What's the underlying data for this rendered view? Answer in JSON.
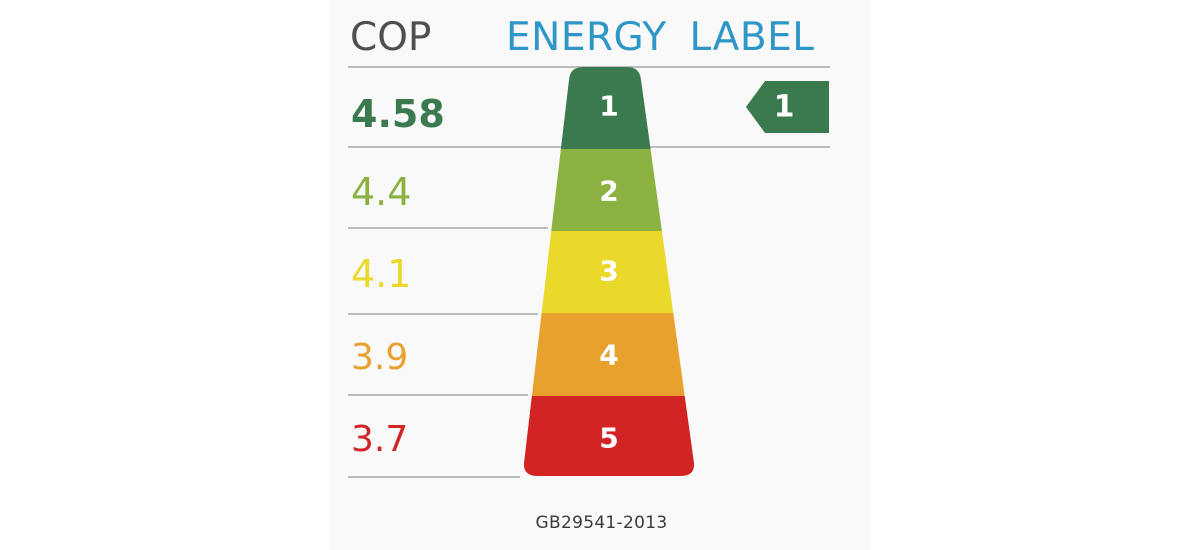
{
  "header": {
    "cop_label": "COP",
    "title": "ENERGY LABEL"
  },
  "grades": [
    {
      "grade": "1",
      "cop": "4.58",
      "color": "#3b7a4f"
    },
    {
      "grade": "2",
      "cop": "4.4",
      "color": "#8bb140"
    },
    {
      "grade": "3",
      "cop": "4.1",
      "color": "#ead92a"
    },
    {
      "grade": "4",
      "cop": "3.9",
      "color": "#e8a12c"
    },
    {
      "grade": "5",
      "cop": "3.7",
      "color": "#d22325"
    }
  ],
  "indicator": {
    "grade": "1",
    "color": "#3b7a4f"
  },
  "footer": {
    "standard": "GB29541-2013"
  }
}
